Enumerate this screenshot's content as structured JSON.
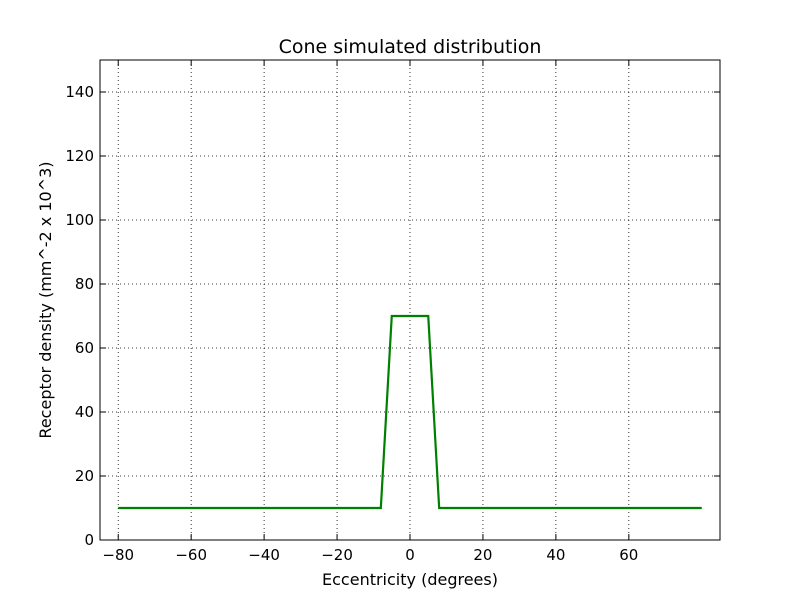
{
  "chart_data": {
    "type": "line",
    "title": "Cone simulated distribution",
    "xlabel": "Eccentricity (degrees)",
    "ylabel": "Receptor density (mm^-2 x 10^3)",
    "xlim": [
      -85,
      85
    ],
    "ylim": [
      0,
      150
    ],
    "xticks": [
      -80,
      -60,
      -40,
      -20,
      0,
      20,
      40,
      60
    ],
    "yticks": [
      0,
      20,
      40,
      60,
      80,
      100,
      120,
      140
    ],
    "xtick_labels": [
      "−80",
      "−60",
      "−40",
      "−20",
      "0",
      "20",
      "40",
      "60"
    ],
    "ytick_labels": [
      "0",
      "20",
      "40",
      "60",
      "80",
      "100",
      "120",
      "140"
    ],
    "grid": true,
    "series": [
      {
        "color": "#008000",
        "x": [
          -80,
          -8,
          -5,
          5,
          8,
          80
        ],
        "y": [
          10,
          10,
          70,
          70,
          10,
          10
        ]
      }
    ]
  }
}
